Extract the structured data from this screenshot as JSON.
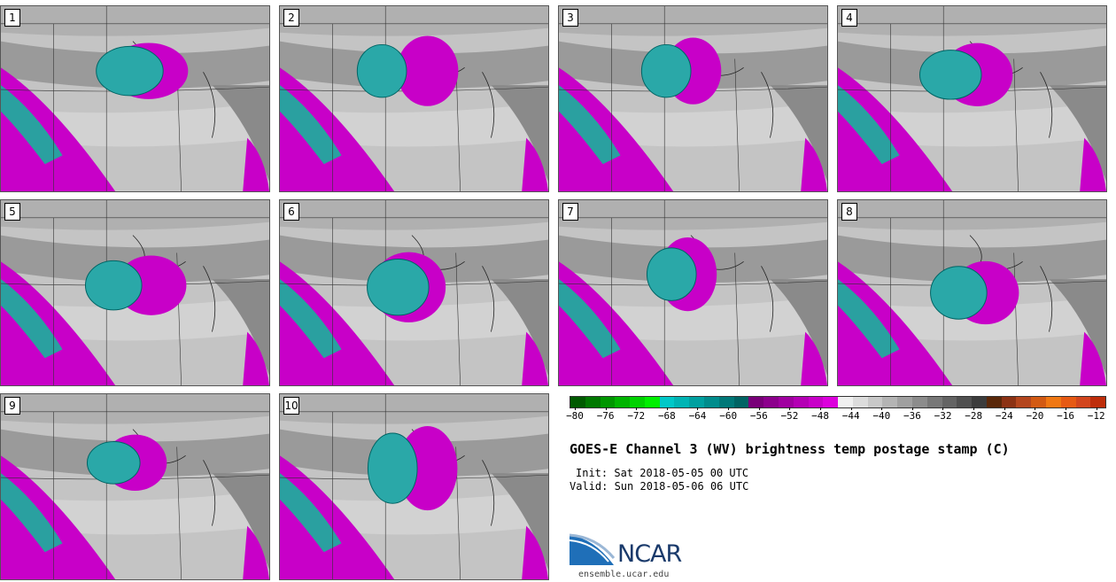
{
  "panels": [
    {
      "label": "1",
      "systems": [
        [
          55,
          35,
          45,
          32
        ],
        [
          48,
          35,
          38,
          28
        ]
      ]
    },
    {
      "label": "2",
      "systems": [
        [
          55,
          35,
          35,
          40
        ],
        [
          38,
          22,
          28,
          30
        ]
      ]
    },
    {
      "label": "3",
      "systems": [
        [
          50,
          35,
          32,
          38
        ],
        [
          40,
          22,
          28,
          30
        ]
      ]
    },
    {
      "label": "4",
      "systems": [
        [
          52,
          37,
          40,
          36
        ],
        [
          42,
          26,
          35,
          28
        ]
      ]
    },
    {
      "label": "5",
      "systems": [
        [
          56,
          46,
          40,
          34
        ],
        [
          42,
          26,
          32,
          28
        ]
      ]
    },
    {
      "label": "6",
      "systems": [
        [
          48,
          47,
          42,
          40
        ],
        [
          44,
          30,
          35,
          32
        ]
      ]
    },
    {
      "label": "7",
      "systems": [
        [
          48,
          40,
          33,
          42
        ],
        [
          42,
          26,
          28,
          30
        ]
      ]
    },
    {
      "label": "8",
      "systems": [
        [
          55,
          50,
          38,
          36
        ],
        [
          45,
          28,
          32,
          30
        ]
      ]
    },
    {
      "label": "9",
      "systems": [
        [
          50,
          37,
          36,
          32
        ],
        [
          42,
          26,
          30,
          24
        ]
      ]
    },
    {
      "label": "10",
      "systems": [
        [
          55,
          40,
          34,
          48
        ],
        [
          42,
          30,
          28,
          40
        ]
      ]
    }
  ],
  "colorbar": {
    "colors": [
      "#005a00",
      "#007800",
      "#009600",
      "#00b400",
      "#00d200",
      "#00f000",
      "#00c8c8",
      "#00b4b4",
      "#00a0a0",
      "#008c8c",
      "#007878",
      "#006464",
      "#780078",
      "#8c008c",
      "#a000a0",
      "#b400b4",
      "#c800c8",
      "#dc00dc",
      "#f0f0f0",
      "#dcdcdc",
      "#c8c8c8",
      "#b4b4b4",
      "#a0a0a0",
      "#8c8c8c",
      "#787878",
      "#646464",
      "#505050",
      "#3c3c3c",
      "#5a280a",
      "#8c3214",
      "#b4461e",
      "#d25a14",
      "#f07814",
      "#e65a14",
      "#d2461e",
      "#be2d0a"
    ],
    "ticks": [
      "−80",
      "−76",
      "−72",
      "−68",
      "−64",
      "−60",
      "−56",
      "−52",
      "−48",
      "−44",
      "−40",
      "−36",
      "−32",
      "−28",
      "−24",
      "−20",
      "−16",
      "−12"
    ]
  },
  "title": "GOES-E Channel 3 (WV) brightness temp postage stamp (C)",
  "init": "Init: Sat 2018-05-05 00 UTC",
  "valid": "Valid: Sun 2018-05-06 06 UTC",
  "logo": {
    "text": "NCAR",
    "site": "ensemble.ucar.edu"
  }
}
